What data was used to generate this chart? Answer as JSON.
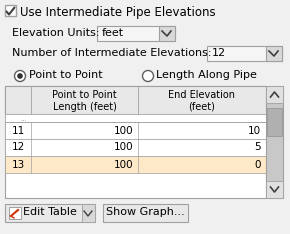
{
  "bg_color": "#f0f0f0",
  "title_text": "Use Intermediate Pipe Elevations",
  "checkbox_checked": true,
  "elevation_units_label": "Elevation Units:",
  "elevation_units_value": "feet",
  "num_elevations_label": "Number of Intermediate Elevations:",
  "num_elevations_value": "12",
  "radio1_label": "Point to Point",
  "radio1_selected": true,
  "radio2_label": "Length Along Pipe",
  "radio2_selected": false,
  "col1_header": "Point to Point\nLength (feet)",
  "col2_header": "End Elevation\n(feet)",
  "table_rows": [
    {
      "row": 11,
      "col1": 100,
      "col2": 10,
      "highlight": false
    },
    {
      "row": 12,
      "col1": 100,
      "col2": 5,
      "highlight": false
    },
    {
      "row": 13,
      "col1": 100,
      "col2": 0,
      "highlight": true
    }
  ],
  "highlight_color": "#fde9c8",
  "table_header_bg": "#e8e8e8",
  "btn1_label": "Edit Table",
  "btn2_label": "Show Graph...",
  "border_color": "#a0a0a0",
  "text_color": "#000000",
  "dropdown_bg": "#f5f5f5",
  "scrollbar_bg": "#c8c8c8",
  "scrollbar_thumb": "#a0a0a0",
  "arrow_btn_bg": "#d0d0d0"
}
